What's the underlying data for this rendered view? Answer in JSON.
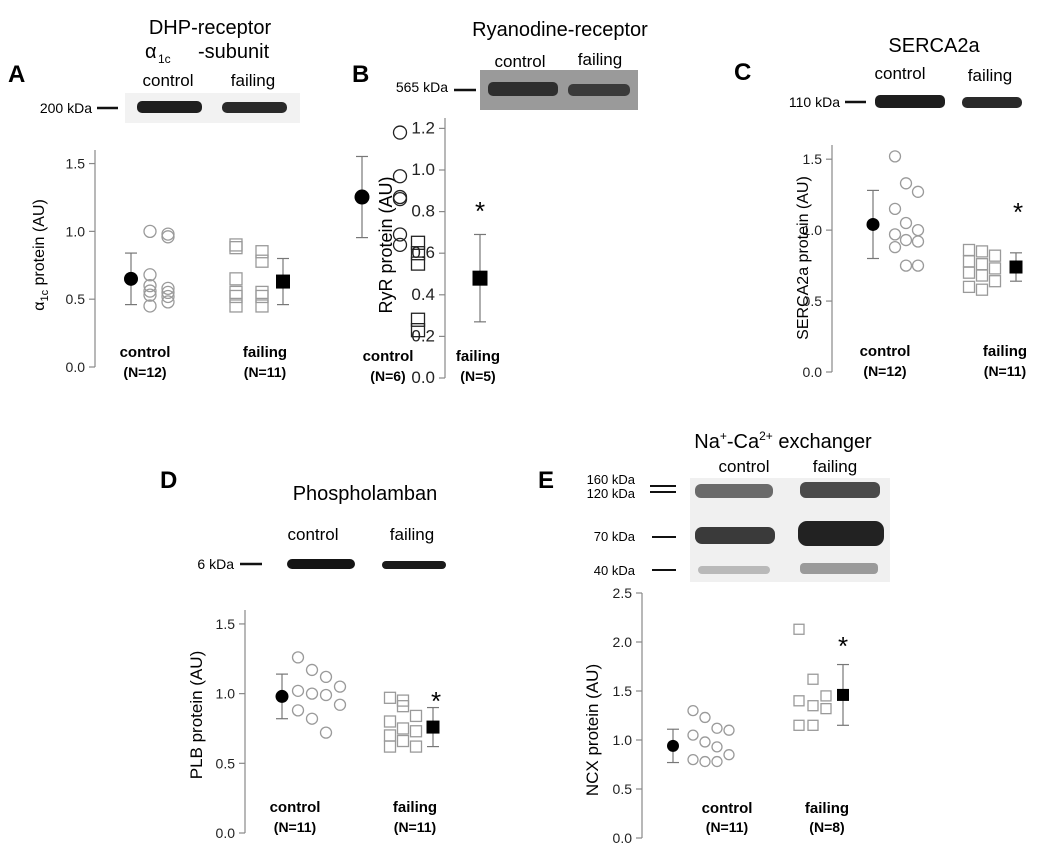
{
  "chart_data": [
    {
      "type": "scatter",
      "panel_letter": "A",
      "title": "DHP-receptor",
      "title_line2_symbol": "α",
      "title_line2_sub": "1c",
      "title_line2_rest": "-subunit",
      "blot_group_labels": [
        "control",
        "failing"
      ],
      "blot_bands": [
        {
          "label": "200 kDa"
        }
      ],
      "ylabel_symbol": "α",
      "ylabel_sub": "1c",
      "ylabel_rest": " protein (AU)",
      "ylim": [
        0,
        1.6
      ],
      "yticks": [
        "0.0",
        "0.5",
        "1.0",
        "1.5"
      ],
      "ytick_values": [
        0,
        0.5,
        1.0,
        1.5
      ],
      "groups": [
        {
          "name": "control",
          "n_label": "(N=12)",
          "mean": 0.65,
          "sd": 0.19,
          "marker": "circle",
          "values": [
            0.6,
            0.58,
            0.56,
            0.55,
            0.53,
            0.48,
            0.45,
            0.98,
            1.0,
            0.96,
            0.68,
            0.52
          ]
        },
        {
          "name": "failing",
          "n_label": "(N=11)",
          "mean": 0.63,
          "sd": 0.17,
          "marker": "square",
          "values": [
            0.88,
            0.85,
            0.9,
            0.78,
            0.65,
            0.55,
            0.52,
            0.52,
            0.45,
            0.45,
            0.55
          ]
        }
      ],
      "significance": ""
    },
    {
      "type": "scatter",
      "panel_letter": "B",
      "title": "Ryanodine-receptor",
      "blot_group_labels": [
        "control",
        "failing"
      ],
      "blot_bands": [
        {
          "label": "565 kDa"
        }
      ],
      "ylabel": "RyR protein (AU)",
      "ylim": [
        0,
        1.25
      ],
      "yticks": [
        "0.0",
        "0.2",
        "0.4",
        "0.6",
        "0.8",
        "1.0",
        "1.2"
      ],
      "ytick_values": [
        0,
        0.2,
        0.4,
        0.6,
        0.8,
        1.0,
        1.2
      ],
      "groups": [
        {
          "name": "control",
          "n_label": "(N=6)",
          "mean": 0.87,
          "sd": 0.195,
          "marker": "circle",
          "values": [
            1.18,
            0.97,
            0.87,
            0.86,
            0.69,
            0.64
          ]
        },
        {
          "name": "failing",
          "n_label": "(N=5)",
          "mean": 0.48,
          "sd": 0.21,
          "marker": "square",
          "values": [
            0.65,
            0.6,
            0.55,
            0.28,
            0.23
          ]
        }
      ],
      "significance": "*"
    },
    {
      "type": "scatter",
      "panel_letter": "C",
      "title": "SERCA2a",
      "blot_group_labels": [
        "control",
        "failing"
      ],
      "blot_bands": [
        {
          "label": "110 kDa"
        }
      ],
      "ylabel": "SERCA2a protein (AU)",
      "ylim": [
        0,
        1.6
      ],
      "yticks": [
        "0.0",
        "0.5",
        "1.0",
        "1.5"
      ],
      "ytick_values": [
        0,
        0.5,
        1.0,
        1.5
      ],
      "groups": [
        {
          "name": "control",
          "n_label": "(N=12)",
          "mean": 1.04,
          "sd": 0.24,
          "marker": "circle",
          "values": [
            1.52,
            1.33,
            1.27,
            1.15,
            1.05,
            1.0,
            0.97,
            0.93,
            0.92,
            0.88,
            0.75,
            0.75
          ]
        },
        {
          "name": "failing",
          "n_label": "(N=11)",
          "mean": 0.74,
          "sd": 0.1,
          "marker": "square",
          "values": [
            0.86,
            0.85,
            0.82,
            0.78,
            0.76,
            0.73,
            0.7,
            0.68,
            0.64,
            0.6,
            0.58
          ]
        }
      ],
      "significance": "*"
    },
    {
      "type": "scatter",
      "panel_letter": "D",
      "title": "Phospholamban",
      "blot_group_labels": [
        "control",
        "failing"
      ],
      "blot_bands": [
        {
          "label": "6 kDa"
        }
      ],
      "ylabel": "PLB protein (AU)",
      "ylim": [
        0,
        1.6
      ],
      "yticks": [
        "0.0",
        "0.5",
        "1.0",
        "1.5"
      ],
      "ytick_values": [
        0,
        0.5,
        1.0,
        1.5
      ],
      "groups": [
        {
          "name": "control",
          "n_label": "(N=11)",
          "mean": 0.98,
          "sd": 0.16,
          "marker": "circle",
          "values": [
            1.26,
            1.17,
            1.12,
            1.05,
            1.02,
            1.0,
            0.99,
            0.92,
            0.88,
            0.82,
            0.72
          ]
        },
        {
          "name": "failing",
          "n_label": "(N=11)",
          "mean": 0.76,
          "sd": 0.14,
          "marker": "square",
          "values": [
            0.97,
            0.95,
            0.84,
            0.8,
            0.75,
            0.73,
            0.7,
            0.66,
            0.62,
            0.62,
            0.91
          ]
        }
      ],
      "significance": "*"
    },
    {
      "type": "scatter",
      "panel_letter": "E",
      "title_prefix": "Na",
      "title_sup1": "+",
      "title_mid": "-Ca",
      "title_sup2": "2+",
      "title_suffix": " exchanger",
      "blot_group_labels": [
        "control",
        "failing"
      ],
      "blot_bands": [
        {
          "label": "160 kDa"
        },
        {
          "label": "120 kDa"
        },
        {
          "label": "70 kDa"
        },
        {
          "label": "40 kDa"
        }
      ],
      "ylabel": "NCX protein (AU)",
      "ylim": [
        0,
        2.5
      ],
      "yticks": [
        "0.0",
        "0.5",
        "1.0",
        "1.5",
        "2.0",
        "2.5"
      ],
      "ytick_values": [
        0,
        0.5,
        1.0,
        1.5,
        2.0,
        2.5
      ],
      "groups": [
        {
          "name": "control",
          "n_label": "(N=11)",
          "mean": 0.94,
          "sd": 0.17,
          "marker": "circle",
          "values": [
            1.3,
            1.23,
            1.12,
            1.1,
            1.05,
            0.98,
            0.93,
            0.85,
            0.8,
            0.78,
            0.78
          ]
        },
        {
          "name": "failing",
          "n_label": "(N=8)",
          "mean": 1.46,
          "sd": 0.31,
          "marker": "square",
          "values": [
            2.13,
            1.62,
            1.45,
            1.4,
            1.35,
            1.32,
            1.15,
            1.15
          ]
        }
      ],
      "significance": "*"
    }
  ]
}
